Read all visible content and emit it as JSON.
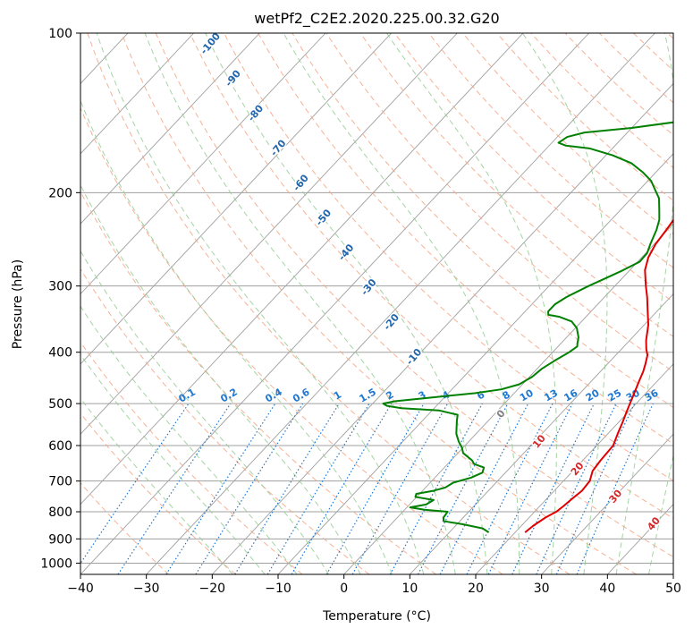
{
  "chart_data": {
    "type": "line",
    "title": "wetPf2_C2E2.2020.225.00.32.G20",
    "xlabel": "Temperature (°C)",
    "ylabel": "Pressure (hPa)",
    "xlim": [
      -40,
      50
    ],
    "ylim": [
      1050,
      100
    ],
    "y_scale": "log",
    "x_ticks": [
      -40,
      -30,
      -20,
      -10,
      0,
      10,
      20,
      30,
      40,
      50
    ],
    "y_ticks": [
      100,
      200,
      300,
      400,
      500,
      600,
      700,
      800,
      900,
      1000
    ],
    "grid": true,
    "series": [
      {
        "color": "#e00000",
        "points": [
          [
            21.5,
            875
          ],
          [
            21.8,
            850
          ],
          [
            22.5,
            820
          ],
          [
            23.3,
            800
          ],
          [
            23.6,
            780
          ],
          [
            23.8,
            760
          ],
          [
            24.2,
            730
          ],
          [
            24.0,
            700
          ],
          [
            23.0,
            670
          ],
          [
            22.7,
            640
          ],
          [
            22.5,
            600
          ],
          [
            21.5,
            570
          ],
          [
            20.7,
            545
          ],
          [
            19.6,
            515
          ],
          [
            18.5,
            485
          ],
          [
            17.3,
            455
          ],
          [
            16.5,
            435
          ],
          [
            15.7,
            420
          ],
          [
            14.8,
            405
          ],
          [
            13.8,
            395
          ],
          [
            12.5,
            380
          ],
          [
            10.6,
            355
          ],
          [
            8.6,
            335
          ],
          [
            6.5,
            315
          ],
          [
            4.7,
            300
          ],
          [
            2.3,
            280
          ],
          [
            1.0,
            265
          ],
          [
            0.2,
            250
          ],
          [
            -0.2,
            235
          ],
          [
            -0.7,
            220
          ],
          [
            -1.0,
            210
          ],
          [
            -1.5,
            205
          ],
          [
            -1.7,
            200
          ],
          [
            -1.0,
            195
          ],
          [
            0.3,
            190
          ],
          [
            2.4,
            185
          ],
          [
            4.9,
            178
          ],
          [
            6.5,
            170
          ],
          [
            7.7,
            162
          ],
          [
            8.7,
            154
          ],
          [
            9.5,
            146
          ],
          [
            9.8,
            140
          ],
          [
            9.5,
            133
          ],
          [
            8.6,
            126
          ],
          [
            8.2,
            120
          ],
          [
            8.7,
            116
          ],
          [
            9.8,
            111
          ],
          [
            11.0,
            106
          ],
          [
            12.0,
            102
          ],
          [
            12.5,
            100
          ]
        ]
      },
      {
        "color": "#008000",
        "points": [
          [
            16.0,
            875
          ],
          [
            14.5,
            860
          ],
          [
            11.0,
            845
          ],
          [
            7.5,
            833
          ],
          [
            7.0,
            820
          ],
          [
            6.8,
            800
          ],
          [
            3.0,
            793
          ],
          [
            0.5,
            785
          ],
          [
            2.5,
            775
          ],
          [
            3.0,
            760
          ],
          [
            -0.2,
            750
          ],
          [
            -0.5,
            740
          ],
          [
            1.7,
            730
          ],
          [
            3.0,
            720
          ],
          [
            3.5,
            705
          ],
          [
            5.5,
            690
          ],
          [
            6.5,
            675
          ],
          [
            6.0,
            660
          ],
          [
            4.0,
            650
          ],
          [
            3.2,
            640
          ],
          [
            0.8,
            620
          ],
          [
            -0.2,
            605
          ],
          [
            -1.5,
            590
          ],
          [
            -3.0,
            570
          ],
          [
            -4.7,
            540
          ],
          [
            -5.5,
            525
          ],
          [
            -9.0,
            515
          ],
          [
            -15.0,
            510
          ],
          [
            -17.5,
            505
          ],
          [
            -18.4,
            500
          ],
          [
            -17.0,
            495
          ],
          [
            -12.0,
            487
          ],
          [
            -6.0,
            478
          ],
          [
            -2.5,
            470
          ],
          [
            -0.5,
            460
          ],
          [
            0.4,
            445
          ],
          [
            0.7,
            430
          ],
          [
            1.5,
            415
          ],
          [
            2.5,
            400
          ],
          [
            2.9,
            390
          ],
          [
            2.5,
            385
          ],
          [
            1.8,
            375
          ],
          [
            0.2,
            360
          ],
          [
            -1.5,
            350
          ],
          [
            -4.0,
            343
          ],
          [
            -6.0,
            340
          ],
          [
            -6.5,
            335
          ],
          [
            -6.5,
            325
          ],
          [
            -5.8,
            315
          ],
          [
            -4.0,
            300
          ],
          [
            -2.5,
            290
          ],
          [
            -1.0,
            280
          ],
          [
            0.3,
            270
          ],
          [
            0.2,
            260
          ],
          [
            -0.6,
            250
          ],
          [
            -1.7,
            235
          ],
          [
            -2.7,
            225
          ],
          [
            -4.2,
            215
          ],
          [
            -5.8,
            205
          ],
          [
            -7.5,
            198
          ],
          [
            -9.5,
            190
          ],
          [
            -12.0,
            183
          ],
          [
            -15.0,
            176
          ],
          [
            -19.0,
            170
          ],
          [
            -23.5,
            165
          ],
          [
            -27.5,
            163
          ],
          [
            -29.0,
            161
          ],
          [
            -28.5,
            157
          ],
          [
            -26.5,
            154
          ],
          [
            -20.0,
            151
          ],
          [
            -14.0,
            147
          ],
          [
            -11.0,
            142
          ],
          [
            -8.5,
            136
          ],
          [
            -7.2,
            130
          ],
          [
            -6.0,
            122
          ],
          [
            -5.0,
            115
          ],
          [
            -3.7,
            110
          ],
          [
            -2.5,
            106
          ],
          [
            -0.8,
            102
          ],
          [
            0.6,
            100
          ]
        ]
      }
    ],
    "mixing_ratio_labels": [
      "0.1",
      "0.2",
      "0.4",
      "0.6",
      "1",
      "1.5",
      "2",
      "3",
      "4",
      "6",
      "8",
      "10",
      "13",
      "16",
      "20",
      "25",
      "30",
      "36"
    ],
    "dry_adiabat_labels": [
      "-100",
      "-90",
      "-80",
      "-70",
      "-60",
      "-50",
      "-40",
      "-30",
      "-20",
      "-10"
    ],
    "moist_adiabat_labels": [
      "0",
      "10",
      "20",
      "30",
      "40"
    ],
    "colors": {
      "temperature": "#e00000",
      "dewpoint": "#008000",
      "isotherm": "#a0a0a0",
      "dry_adiabat": "#f4a582",
      "moist_adiabat": "#8fc98f",
      "mixing_ratio": "#1f78d1",
      "adiabat_label": "#2166ac",
      "moist_label": "#d62728"
    }
  }
}
